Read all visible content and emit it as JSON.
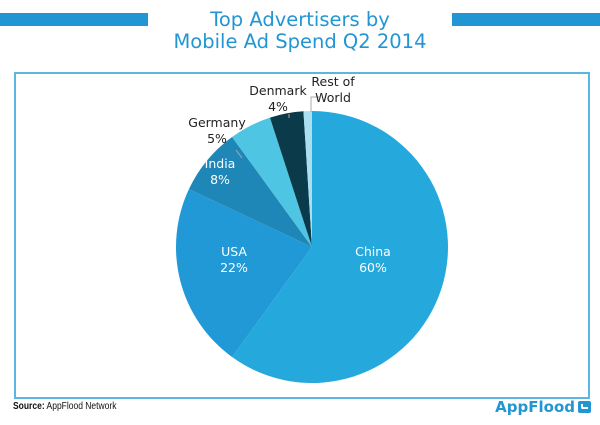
{
  "header": {
    "title_line1": "Top Advertisers by",
    "title_line2": "Mobile Ad Spend Q2 2014"
  },
  "footer": {
    "source_label": "Source:",
    "source_text": " AppFlood Network",
    "logo_text": "AppFlood"
  },
  "chart_data": {
    "type": "pie",
    "title": "Top Advertisers by Mobile Ad Spend Q2 2014",
    "start": "top",
    "direction": "clockwise",
    "slices": [
      {
        "label": "China",
        "value": 60,
        "display": "60%",
        "color": "#25a9dc",
        "label_style": "inside"
      },
      {
        "label": "USA",
        "value": 22,
        "display": "22%",
        "color": "#2199d7",
        "label_style": "inside"
      },
      {
        "label": "India",
        "value": 8,
        "display": "8%",
        "color": "#1f86b8",
        "label_style": "inside"
      },
      {
        "label": "Germany",
        "value": 5,
        "display": "5%",
        "color": "#4ec5e2",
        "label_style": "outside"
      },
      {
        "label": "Denmark",
        "value": 4,
        "display": "4%",
        "color": "#0b3a4a",
        "label_style": "outside"
      },
      {
        "label": "Rest of World",
        "value": 1,
        "display": "",
        "color": "#a9dff0",
        "label_style": "outside",
        "label_lines": [
          "Rest of",
          "World"
        ]
      }
    ],
    "legend": "none"
  }
}
